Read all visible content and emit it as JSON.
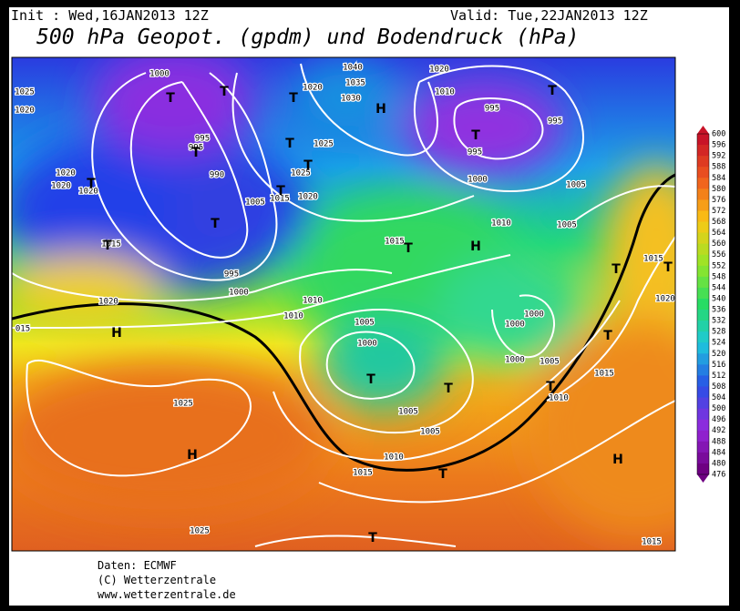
{
  "header": {
    "init": "Init : Wed,16JAN2013 12Z",
    "valid": "Valid: Tue,22JAN2013 12Z",
    "title": "500 hPa Geopot. (gpdm) und Bodendruck (hPa)"
  },
  "map": {
    "isobar_labels": [
      "1000",
      "1025",
      "1020",
      "995",
      "995",
      "990",
      "1005",
      "1015",
      "1025",
      "1025",
      "1020",
      "1040",
      "1035",
      "1030",
      "1020",
      "1010",
      "995",
      "995",
      "995",
      "1000",
      "1005",
      "1010",
      "1005",
      "1015",
      "1020",
      "1020",
      "1020",
      "1015",
      "995",
      "1000",
      "1020",
      "1010",
      "1010",
      "1005",
      "1000",
      "1000",
      "1000",
      "1000",
      "1005",
      "1010",
      "1015",
      "1005",
      "1005",
      "1010",
      "1015",
      "1025",
      "1025",
      "1015",
      "1015",
      "1020",
      "015",
      "1020"
    ],
    "pressure_centers": [
      "H",
      "H",
      "H",
      "T",
      "T",
      "T",
      "T",
      "T",
      "T",
      "T",
      "T",
      "T",
      "T",
      "H",
      "T",
      "T",
      "T",
      "H",
      "T",
      "T",
      "T",
      "T",
      "T",
      "T",
      "T",
      "T"
    ]
  },
  "colorbar": {
    "labels": [
      "600",
      "596",
      "592",
      "588",
      "584",
      "580",
      "576",
      "572",
      "568",
      "564",
      "560",
      "556",
      "552",
      "548",
      "544",
      "540",
      "536",
      "532",
      "528",
      "524",
      "520",
      "516",
      "512",
      "508",
      "504",
      "500",
      "496",
      "492",
      "488",
      "484",
      "480",
      "476"
    ]
  },
  "footer": {
    "source": "Daten: ECMWF",
    "copyright": "(C) Wetterzentrale",
    "url": "www.wetterzentrale.de"
  }
}
